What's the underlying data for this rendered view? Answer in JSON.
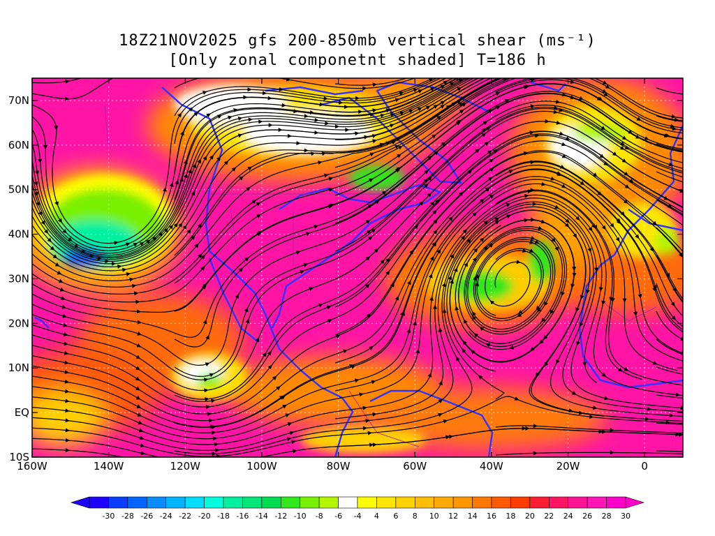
{
  "title": {
    "line1": "18Z21NOV2025 gfs 200-850mb vertical shear (ms⁻¹)",
    "line2": "[Only zonal componetnt shaded] T=186 h"
  },
  "map": {
    "lon_ticks": [
      "160W",
      "140W",
      "120W",
      "100W",
      "80W",
      "60W",
      "40W",
      "20W",
      "0"
    ],
    "lat_ticks": [
      "70N",
      "60N",
      "50N",
      "40N",
      "30N",
      "20N",
      "10N",
      "EQ",
      "10S"
    ],
    "lon_values": [
      -160,
      -140,
      -120,
      -100,
      -80,
      -60,
      -40,
      -20,
      0
    ],
    "lat_values": [
      70,
      60,
      50,
      40,
      30,
      20,
      10,
      0,
      -10
    ],
    "lon_range": [
      -160,
      10
    ],
    "lat_range": [
      -10,
      75
    ],
    "coastline_color": "#3333ff",
    "border_color": "#aa22aa",
    "streamline_color": "#000000",
    "grid": "dotted white"
  },
  "colorbar": {
    "labels": [
      "-30",
      "-28",
      "-26",
      "-24",
      "-22",
      "-20",
      "-18",
      "-16",
      "-14",
      "-12",
      "-10",
      "-8",
      "-6",
      "-4",
      "4",
      "6",
      "8",
      "10",
      "12",
      "14",
      "16",
      "18",
      "20",
      "22",
      "24",
      "26",
      "28",
      "30"
    ],
    "colors": [
      "#1e00ff",
      "#0a3cff",
      "#0064ff",
      "#0a8cff",
      "#00b4ff",
      "#00dcff",
      "#00ffdc",
      "#00f0a0",
      "#00e678",
      "#00dc50",
      "#32e61e",
      "#78f000",
      "#b4f500",
      "#ffffff",
      "#ffff00",
      "#ffe600",
      "#ffd200",
      "#ffbe00",
      "#ffaa00",
      "#ff9600",
      "#ff7800",
      "#ff5a00",
      "#ff3c00",
      "#ff1e32",
      "#ff1464",
      "#ff1496",
      "#ff14b4",
      "#ff00c8"
    ]
  }
}
